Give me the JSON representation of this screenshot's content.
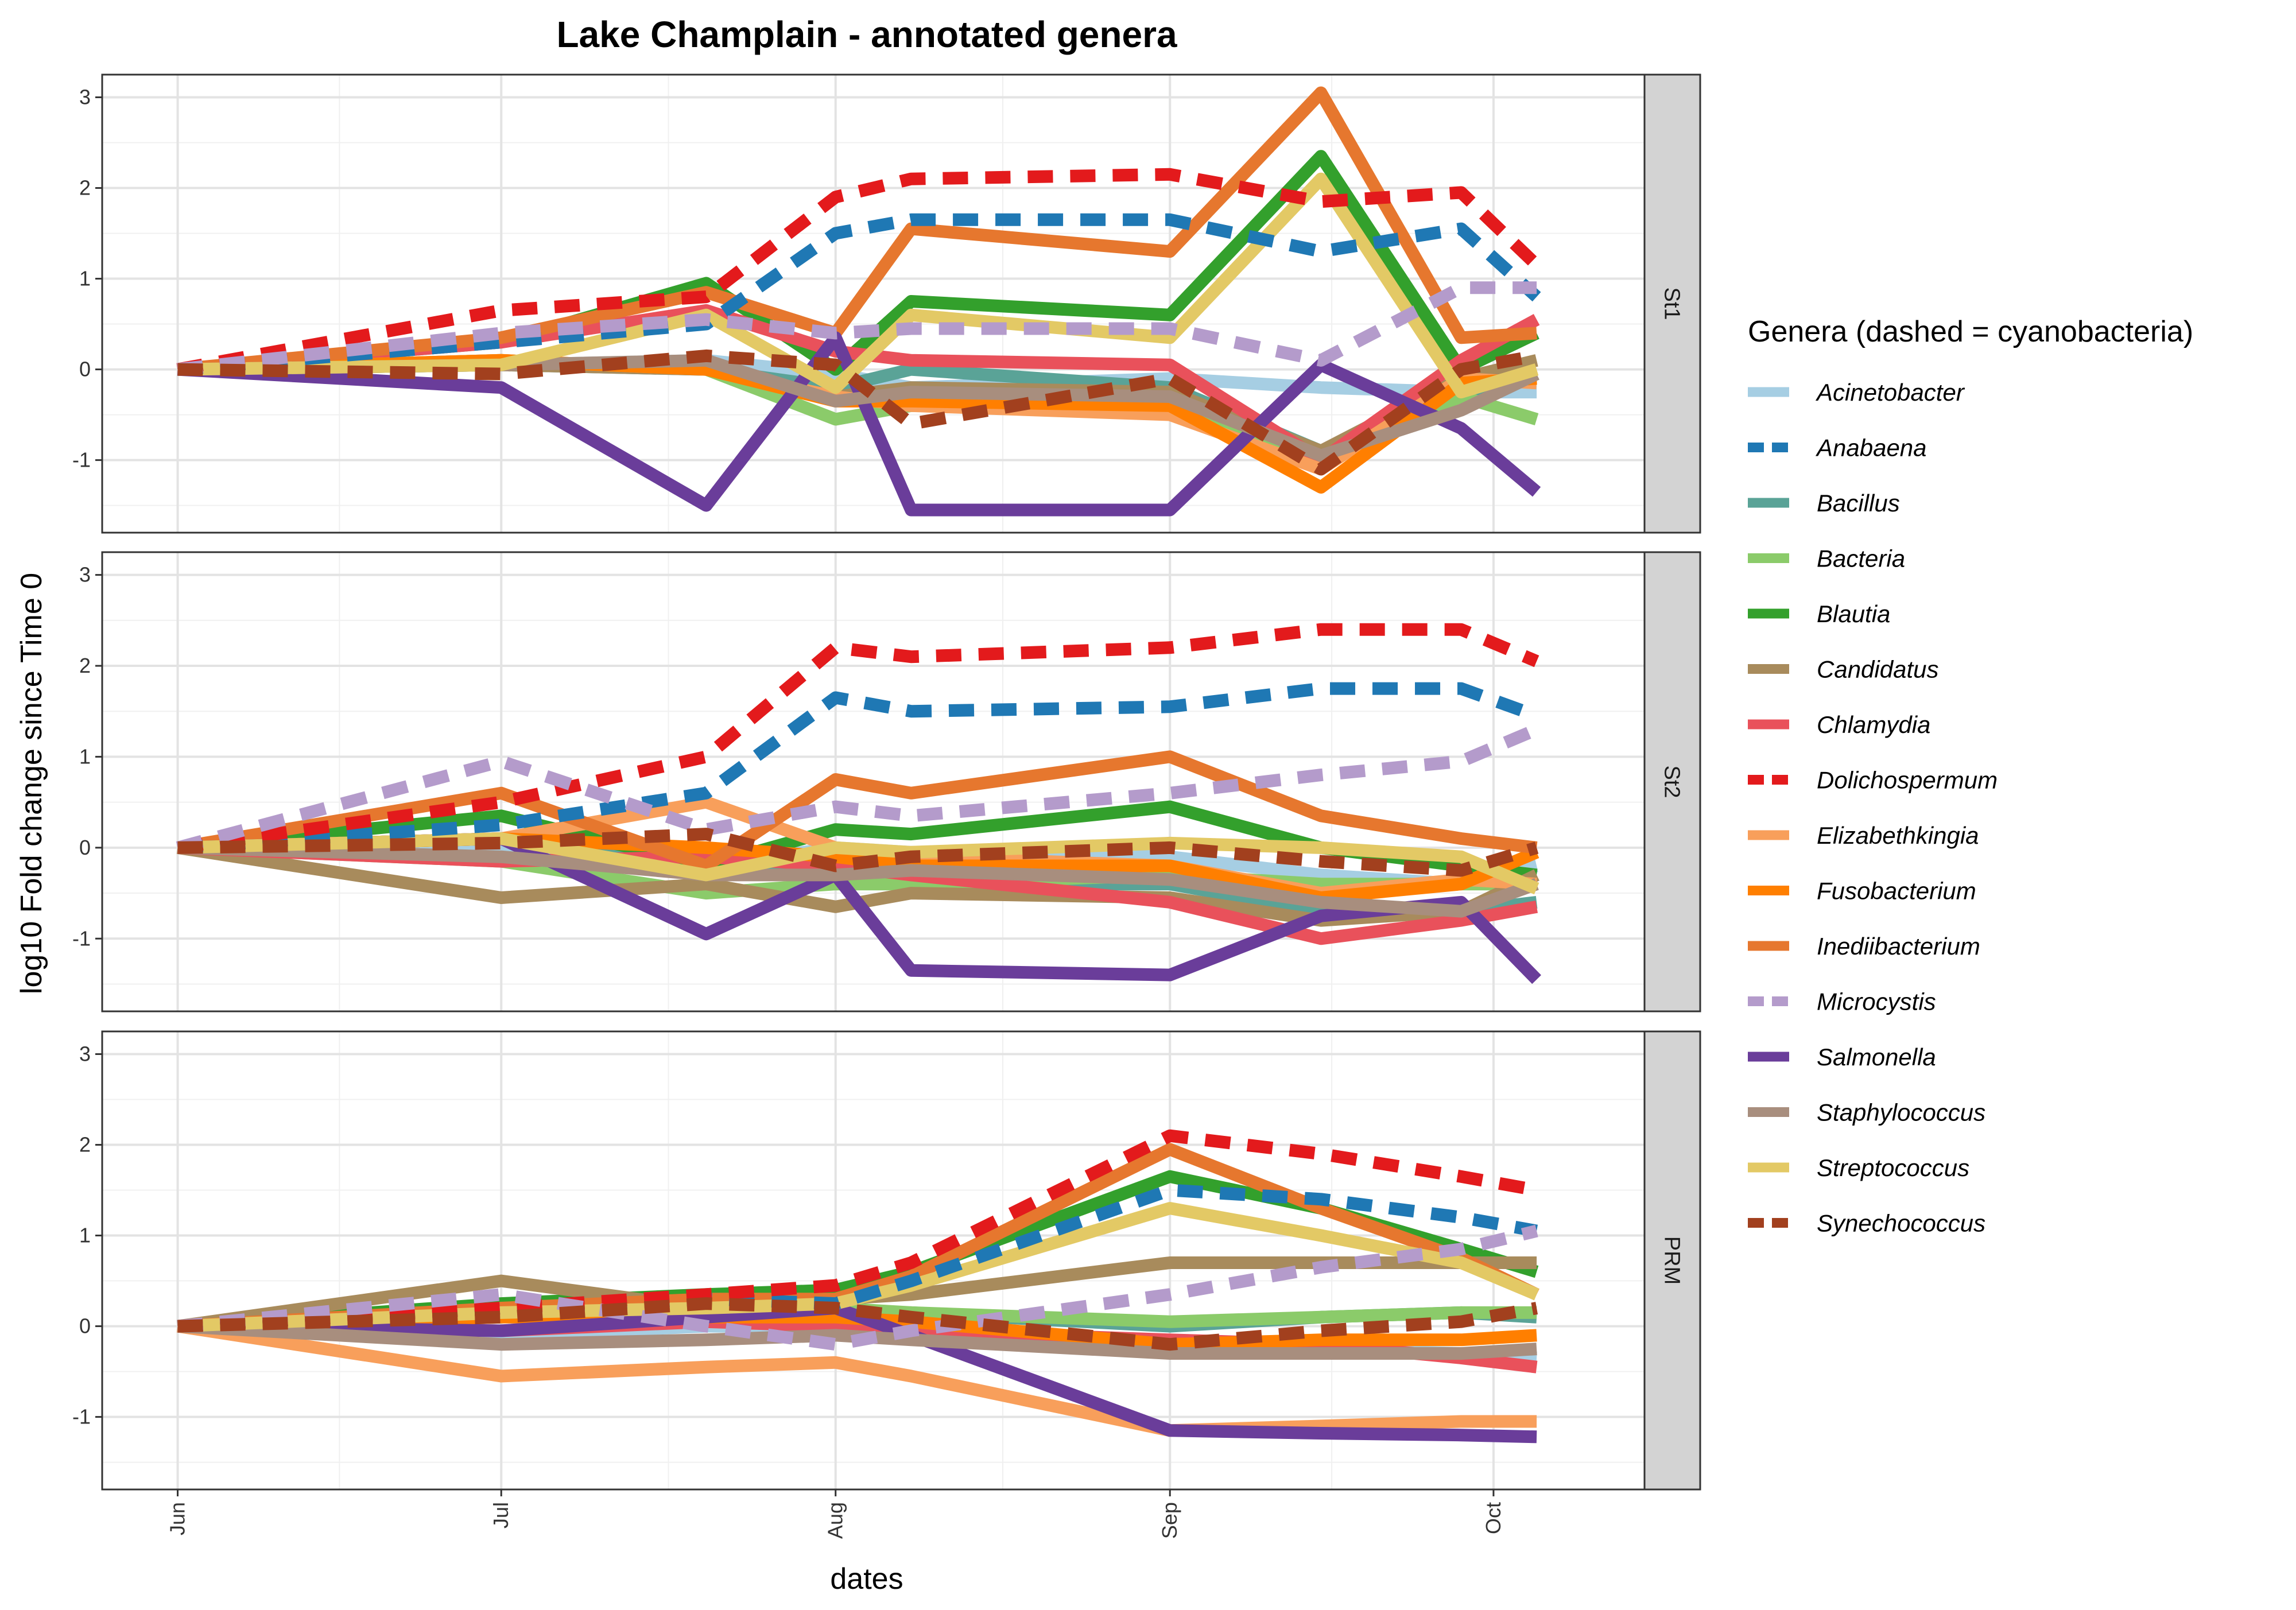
{
  "chart_data": {
    "type": "line",
    "title": "Lake Champlain - annotated genera",
    "xlabel": "dates",
    "ylabel": "log10 Fold change since Time 0",
    "x_ticks": [
      "Jun",
      "Jul",
      "Aug",
      "Sep",
      "Oct"
    ],
    "x_tick_dates": [
      "2020-06-01",
      "2020-07-01",
      "2020-08-01",
      "2020-09-01",
      "2020-10-01"
    ],
    "x_range": [
      "2020-05-25",
      "2020-10-15"
    ],
    "ylim": [
      -1.8,
      3.25
    ],
    "y_ticks": [
      -1,
      0,
      1,
      2,
      3
    ],
    "grid": true,
    "legend": {
      "title": "Genera (dashed = cyanobacteria)",
      "position": "right"
    },
    "x": [
      "2020-06-01",
      "2020-07-01",
      "2020-07-20",
      "2020-08-01",
      "2020-08-08",
      "2020-09-01",
      "2020-09-15",
      "2020-09-28",
      "2020-10-05"
    ],
    "series": [
      {
        "name": "Acinetobacter",
        "color": "#A6CEE3",
        "dashed": false
      },
      {
        "name": "Anabaena",
        "color": "#1F78B4",
        "dashed": true
      },
      {
        "name": "Bacillus",
        "color": "#5AA397",
        "dashed": false
      },
      {
        "name": "Bacteria",
        "color": "#8BCB6A",
        "dashed": false
      },
      {
        "name": "Blautia",
        "color": "#33A02C",
        "dashed": false
      },
      {
        "name": "Candidatus",
        "color": "#A88B5C",
        "dashed": false
      },
      {
        "name": "Chlamydia",
        "color": "#E9515B",
        "dashed": false
      },
      {
        "name": "Dolichospermum",
        "color": "#E31A1C",
        "dashed": true
      },
      {
        "name": "Elizabethkingia",
        "color": "#F89F5B",
        "dashed": false
      },
      {
        "name": "Fusobacterium",
        "color": "#FF7F00",
        "dashed": false
      },
      {
        "name": "Inediibacterium",
        "color": "#E6772E",
        "dashed": false
      },
      {
        "name": "Microcystis",
        "color": "#B49BCB",
        "dashed": true
      },
      {
        "name": "Salmonella",
        "color": "#6A3D9A",
        "dashed": false
      },
      {
        "name": "Staphylococcus",
        "color": "#A88E7E",
        "dashed": false
      },
      {
        "name": "Streptococcus",
        "color": "#E3C965",
        "dashed": false
      },
      {
        "name": "Synechococcus",
        "color": "#A2401E",
        "dashed": true
      }
    ],
    "panels": [
      {
        "label": "St1",
        "values": {
          "Acinetobacter": [
            0,
            0.05,
            0.1,
            -0.05,
            -0.2,
            -0.1,
            -0.2,
            -0.25,
            -0.25
          ],
          "Anabaena": [
            0,
            0.3,
            0.5,
            1.5,
            1.65,
            1.65,
            1.3,
            1.55,
            0.8
          ],
          "Bacillus": [
            0,
            0.05,
            0.0,
            -0.2,
            0.0,
            -0.2,
            -0.9,
            -0.4,
            -0.05
          ],
          "Bacteria": [
            0,
            0.1,
            0.0,
            -0.55,
            -0.4,
            -0.45,
            -1.0,
            -0.3,
            -0.55
          ],
          "Blautia": [
            0,
            0.3,
            0.95,
            0.0,
            0.75,
            0.6,
            2.35,
            0.0,
            0.4
          ],
          "Candidatus": [
            0,
            0.05,
            0.0,
            -0.3,
            -0.2,
            -0.25,
            -0.9,
            -0.1,
            0.1
          ],
          "Chlamydia": [
            0,
            0.3,
            0.65,
            0.2,
            0.1,
            0.05,
            -1.0,
            0.1,
            0.55
          ],
          "Dolichospermum": [
            0,
            0.65,
            0.8,
            1.9,
            2.1,
            2.15,
            1.85,
            1.95,
            1.15
          ],
          "Elizabethkingia": [
            0,
            0.1,
            0.0,
            -0.3,
            -0.4,
            -0.5,
            -1.1,
            -0.1,
            -0.15
          ],
          "Fusobacterium": [
            0,
            0.1,
            0.0,
            -0.35,
            -0.35,
            -0.4,
            -1.3,
            -0.15,
            -0.1
          ],
          "Inediibacterium": [
            0,
            0.35,
            0.85,
            0.4,
            1.55,
            1.3,
            3.05,
            0.35,
            0.4
          ],
          "Microcystis": [
            0,
            0.4,
            0.55,
            0.4,
            0.45,
            0.45,
            0.1,
            0.9,
            0.9
          ],
          "Salmonella": [
            0,
            -0.2,
            -1.5,
            0.35,
            -1.55,
            -1.55,
            0.05,
            -0.65,
            -1.35
          ],
          "Staphylococcus": [
            0,
            0.05,
            0.1,
            -0.35,
            -0.25,
            -0.3,
            -0.95,
            -0.45,
            -0.05
          ],
          "Streptococcus": [
            0,
            0.05,
            0.6,
            -0.2,
            0.6,
            0.35,
            2.1,
            -0.25,
            0.0
          ],
          "Synechococcus": [
            0,
            -0.05,
            0.15,
            0.05,
            -0.6,
            -0.1,
            -1.1,
            0.0,
            0.15
          ]
        }
      },
      {
        "label": "St2",
        "values": {
          "Acinetobacter": [
            0,
            0.0,
            -0.2,
            0.0,
            -0.05,
            -0.1,
            -0.3,
            -0.4,
            -0.2
          ],
          "Anabaena": [
            0,
            0.25,
            0.6,
            1.65,
            1.5,
            1.55,
            1.75,
            1.75,
            1.45
          ],
          "Bacillus": [
            0,
            0.1,
            -0.2,
            -0.3,
            -0.4,
            -0.4,
            -0.7,
            -0.7,
            -0.6
          ],
          "Bacteria": [
            0,
            -0.15,
            -0.5,
            -0.4,
            -0.4,
            -0.3,
            -0.4,
            -0.4,
            -0.4
          ],
          "Blautia": [
            0,
            0.35,
            -0.2,
            0.2,
            0.15,
            0.45,
            0.0,
            -0.2,
            -0.3
          ],
          "Candidatus": [
            0,
            -0.55,
            -0.4,
            -0.65,
            -0.5,
            -0.55,
            -0.8,
            -0.7,
            -0.3
          ],
          "Chlamydia": [
            0,
            -0.15,
            -0.1,
            -0.2,
            -0.3,
            -0.6,
            -1.0,
            -0.8,
            -0.65
          ],
          "Dolichospermum": [
            0,
            0.5,
            1.0,
            2.2,
            2.1,
            2.2,
            2.4,
            2.4,
            2.05
          ],
          "Elizabethkingia": [
            0,
            0.1,
            0.5,
            0.0,
            -0.1,
            -0.2,
            -0.5,
            -0.35,
            -0.4
          ],
          "Fusobacterium": [
            0,
            0.1,
            0.0,
            -0.1,
            -0.2,
            -0.2,
            -0.55,
            -0.4,
            -0.05
          ],
          "Inediibacterium": [
            0,
            0.6,
            -0.2,
            0.75,
            0.6,
            1.0,
            0.35,
            0.1,
            0.0
          ],
          "Microcystis": [
            0,
            0.95,
            0.2,
            0.45,
            0.35,
            0.6,
            0.8,
            0.95,
            1.3
          ],
          "Salmonella": [
            0,
            0.1,
            -0.95,
            -0.3,
            -1.35,
            -1.4,
            -0.75,
            -0.6,
            -1.45
          ],
          "Staphylococcus": [
            0,
            -0.1,
            -0.3,
            -0.3,
            -0.25,
            -0.35,
            -0.6,
            -0.7,
            -0.4
          ],
          "Streptococcus": [
            0,
            0.1,
            -0.3,
            0.0,
            -0.05,
            0.05,
            0.0,
            -0.1,
            -0.45
          ],
          "Synechococcus": [
            0,
            0.05,
            0.15,
            -0.2,
            -0.1,
            0.0,
            -0.15,
            -0.25,
            0.0
          ]
        }
      },
      {
        "label": "PRM",
        "values": {
          "Acinetobacter": [
            0,
            -0.1,
            0.0,
            0.0,
            0.0,
            -0.2,
            -0.25,
            -0.3,
            -0.35
          ],
          "Anabaena": [
            0,
            0.2,
            0.3,
            0.25,
            0.5,
            1.5,
            1.4,
            1.2,
            1.05
          ],
          "Bacillus": [
            0,
            0.1,
            0.15,
            0.1,
            0.15,
            0.0,
            0.1,
            0.15,
            0.1
          ],
          "Bacteria": [
            0,
            0.15,
            0.2,
            0.2,
            0.15,
            0.05,
            0.1,
            0.15,
            0.15
          ],
          "Blautia": [
            0,
            0.25,
            0.35,
            0.4,
            0.6,
            1.65,
            1.3,
            0.85,
            0.6
          ],
          "Candidatus": [
            0,
            0.5,
            0.2,
            0.3,
            0.35,
            0.7,
            0.7,
            0.7,
            0.7
          ],
          "Chlamydia": [
            0,
            -0.05,
            0.05,
            0.0,
            -0.05,
            -0.15,
            -0.2,
            -0.35,
            -0.45
          ],
          "Dolichospermum": [
            0,
            0.2,
            0.35,
            0.45,
            0.7,
            2.1,
            1.9,
            1.65,
            1.5
          ],
          "Elizabethkingia": [
            0,
            -0.55,
            -0.45,
            -0.4,
            -0.55,
            -1.15,
            -1.1,
            -1.05,
            -1.05
          ],
          "Fusobacterium": [
            0,
            0.1,
            0.1,
            0.1,
            0.05,
            -0.2,
            -0.15,
            -0.15,
            -0.1
          ],
          "Inediibacterium": [
            0,
            0.2,
            0.3,
            0.3,
            0.55,
            1.95,
            1.3,
            0.75,
            0.35
          ],
          "Microcystis": [
            0,
            0.35,
            0.0,
            -0.2,
            -0.05,
            0.35,
            0.65,
            0.85,
            1.05
          ],
          "Salmonella": [
            0,
            -0.05,
            0.1,
            0.2,
            -0.1,
            -1.15,
            -1.18,
            -1.2,
            -1.22
          ],
          "Staphylococcus": [
            0,
            -0.2,
            -0.15,
            -0.1,
            -0.15,
            -0.3,
            -0.3,
            -0.3,
            -0.25
          ],
          "Streptococcus": [
            0,
            0.15,
            0.2,
            0.25,
            0.45,
            1.3,
            1.0,
            0.7,
            0.35
          ],
          "Synechococcus": [
            0,
            0.1,
            0.25,
            0.2,
            0.1,
            -0.2,
            -0.05,
            0.05,
            0.2
          ]
        }
      }
    ]
  }
}
